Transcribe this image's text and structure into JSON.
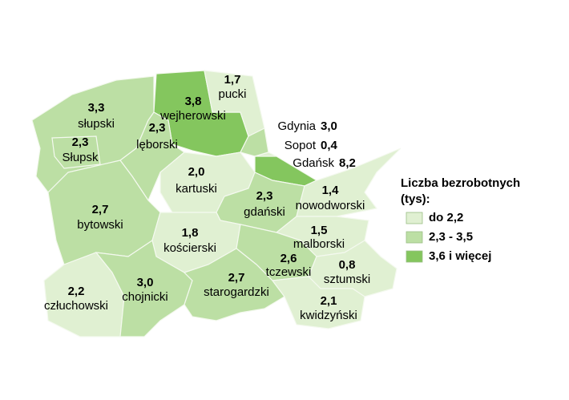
{
  "map": {
    "regions": [
      {
        "name": "słupski",
        "value": "3,3",
        "color": "#bcdfa4"
      },
      {
        "name": "Słupsk",
        "value": "2,3",
        "color": "#bcdfa4"
      },
      {
        "name": "wejherowski",
        "value": "3,8",
        "color": "#84c65e"
      },
      {
        "name": "lęborski",
        "value": "2,3",
        "color": "#bcdfa4"
      },
      {
        "name": "pucki",
        "value": "1,7",
        "color": "#e0f0d2"
      },
      {
        "name": "Gdynia",
        "value": "3,0",
        "color": "#bcdfa4"
      },
      {
        "name": "Sopot",
        "value": "0,4",
        "color": "#e0f0d2"
      },
      {
        "name": "Gdańsk",
        "value": "8,2",
        "color": "#84c65e"
      },
      {
        "name": "kartuski",
        "value": "2,0",
        "color": "#e0f0d2"
      },
      {
        "name": "bytowski",
        "value": "2,7",
        "color": "#bcdfa4"
      },
      {
        "name": "gdański",
        "value": "2,3",
        "color": "#bcdfa4"
      },
      {
        "name": "nowodworski",
        "value": "1,4",
        "color": "#e0f0d2"
      },
      {
        "name": "kościerski",
        "value": "1,8",
        "color": "#e0f0d2"
      },
      {
        "name": "malborski",
        "value": "1,5",
        "color": "#e0f0d2"
      },
      {
        "name": "tczewski",
        "value": "2,6",
        "color": "#bcdfa4"
      },
      {
        "name": "sztumski",
        "value": "0,8",
        "color": "#e0f0d2"
      },
      {
        "name": "człuchowski",
        "value": "2,2",
        "color": "#e0f0d2"
      },
      {
        "name": "chojnicki",
        "value": "3,0",
        "color": "#bcdfa4"
      },
      {
        "name": "starogardzki",
        "value": "2,7",
        "color": "#bcdfa4"
      },
      {
        "name": "kwidzyński",
        "value": "2,1",
        "color": "#e0f0d2"
      }
    ],
    "legend": {
      "title": [
        "Liczba bezrobotnych",
        "(tys):"
      ],
      "classes": [
        {
          "label": "do 2,2",
          "color": "#e0f0d2"
        },
        {
          "label": "2,3 - 3,5",
          "color": "#bcdfa4"
        },
        {
          "label": "3,6 i więcej",
          "color": "#84c65e"
        }
      ]
    }
  }
}
